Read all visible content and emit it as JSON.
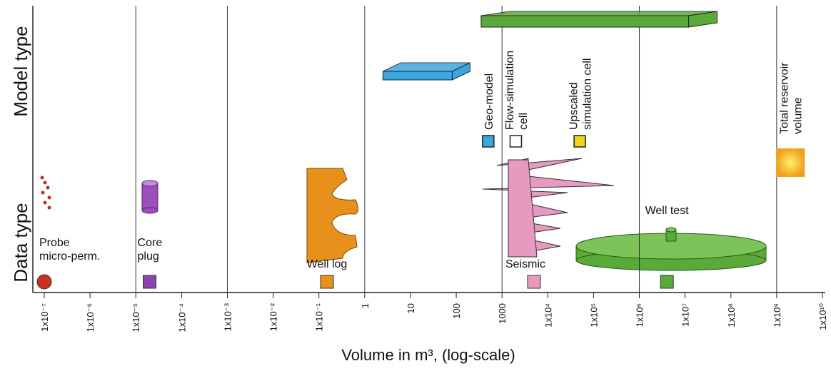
{
  "chart_data": {
    "type": "log-scale",
    "x_label": "Volume in m³, (log-scale)",
    "row_labels": [
      "Model type",
      "Data type"
    ],
    "log_x": true,
    "xlim": [
      1e-07,
      10000000000.0
    ],
    "xticks": [
      {
        "value": 1e-07,
        "label": "1x10⁻⁷"
      },
      {
        "value": 1e-06,
        "label": "1x10⁻⁶"
      },
      {
        "value": 1e-05,
        "label": "1x10⁻⁵"
      },
      {
        "value": 0.0001,
        "label": "1x10⁻⁴"
      },
      {
        "value": 0.001,
        "label": "1x10⁻³"
      },
      {
        "value": 0.01,
        "label": "1x10⁻²"
      },
      {
        "value": 0.1,
        "label": "1x10⁻¹"
      },
      1,
      10,
      100,
      1000,
      {
        "value": 10000.0,
        "label": "1x10⁴"
      },
      {
        "value": 100000.0,
        "label": "1x10⁵"
      },
      {
        "value": 1000000.0,
        "label": "1x10⁶"
      },
      {
        "value": 10000000.0,
        "label": "1x10⁷"
      },
      {
        "value": 100000000.0,
        "label": "1x10⁸"
      },
      {
        "value": 1000000000.0,
        "label": "1x10⁹"
      },
      {
        "value": 10000000000.0,
        "label": "1x10¹⁰"
      }
    ],
    "grid": [
      1e-05,
      0.001,
      1,
      1000,
      1000000.0,
      1000000000.0
    ],
    "data_types": [
      {
        "label": [
          "Probe",
          "micro-perm."
        ],
        "value": 1e-07,
        "color": "#c8321e"
      },
      {
        "label": [
          "Core",
          "plug"
        ],
        "value": 2e-05,
        "color": "#8e44ad"
      },
      {
        "label": [
          "Well log"
        ],
        "value": 0.15,
        "color": "#e8901c"
      },
      {
        "label": [
          "Seismic"
        ],
        "value": 5000,
        "color": "#e79ac0"
      },
      {
        "label": [
          "Well test"
        ],
        "value": 4000000,
        "color": "#5aaa3a"
      }
    ],
    "model_types": [
      {
        "label": [
          "Geo-model"
        ],
        "value": 500,
        "color": "#3aa7e0"
      },
      {
        "label": [
          "Flow-simulation",
          "cell"
        ],
        "value": 2000,
        "color": "#ffffff"
      },
      {
        "label": [
          "Upscaled",
          "simulation cell"
        ],
        "value": 50000,
        "color": "#f2d21e"
      },
      {
        "label": [
          "Total reservoir",
          "volume"
        ],
        "value": 2000000000,
        "color": "#f5a623"
      }
    ],
    "model_bars": [
      {
        "range": [
          2.5,
          200
        ],
        "color": "#3aa7e0"
      },
      {
        "range": [
          350,
          50000000
        ],
        "color": "#5aaa3a"
      }
    ]
  }
}
